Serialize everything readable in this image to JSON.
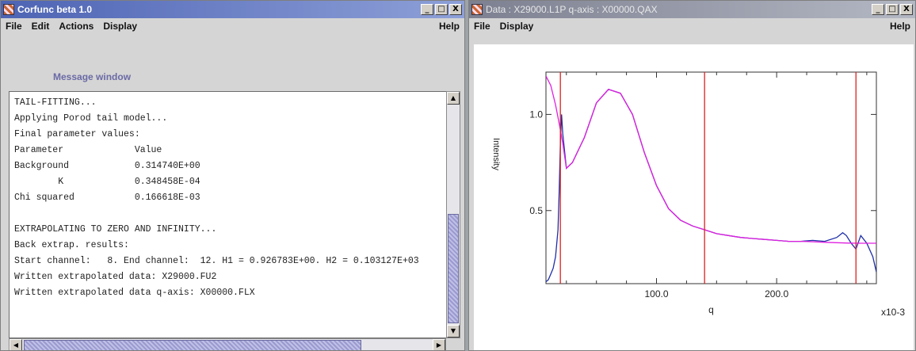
{
  "corfunc_window": {
    "title": "Corfunc beta 1.0",
    "controls": {
      "minimize": "_",
      "maximize": "□",
      "close": "X"
    },
    "menu": [
      "File",
      "Edit",
      "Actions",
      "Display"
    ],
    "help": "Help",
    "message_label": "Message window",
    "log_lines": [
      "TAIL-FITTING...",
      "Applying Porod tail model...",
      "Final parameter values:",
      "Parameter             Value",
      "Background            0.314740E+00",
      "        K             0.348458E-04",
      "Chi squared           0.166618E-03",
      "",
      "EXTRAPOLATING TO ZERO AND INFINITY...",
      "Back extrap. results:",
      "Start channel:   8. End channel:  12. H1 = 0.926783E+00. H2 = 0.103127E+03",
      "Written extrapolated data: X29000.FU2",
      "Written extrapolated data q-axis: X00000.FLX"
    ]
  },
  "data_window": {
    "title": "Data : X29000.L1P  q-axis : X00000.QAX",
    "controls": {
      "minimize": "_",
      "maximize": "□",
      "close": "X"
    },
    "menu": [
      "File",
      "Display"
    ],
    "help": "Help"
  },
  "chart_data": {
    "type": "line",
    "xlabel": "q",
    "ylabel": "Intensity",
    "x_multiplier_label": "x10-3",
    "xlim": [
      8,
      283
    ],
    "ylim": [
      0.12,
      1.22
    ],
    "x_ticks": [
      100.0,
      200.0
    ],
    "x_tick_labels": [
      "100.0",
      "200.0"
    ],
    "y_ticks": [
      0.5,
      1.0
    ],
    "y_tick_labels": [
      "0.5",
      "1.0"
    ],
    "grid": false,
    "vertical_markers_x": [
      20,
      140,
      266
    ],
    "series": [
      {
        "color": "#1f2fa8",
        "x": [
          8,
          10,
          12,
          14,
          16,
          18,
          19,
          20,
          21,
          22,
          25,
          30,
          40,
          50,
          60,
          70,
          80,
          90,
          100,
          110,
          120,
          130,
          140,
          150,
          160,
          170,
          180,
          190,
          200,
          210,
          220,
          230,
          240,
          250,
          255,
          258,
          262,
          266,
          270,
          275,
          280,
          283
        ],
        "y": [
          0.13,
          0.14,
          0.17,
          0.2,
          0.26,
          0.4,
          0.6,
          0.85,
          1.0,
          0.9,
          0.72,
          0.75,
          0.88,
          1.06,
          1.13,
          1.11,
          1.0,
          0.8,
          0.63,
          0.51,
          0.45,
          0.42,
          0.4,
          0.38,
          0.37,
          0.36,
          0.355,
          0.35,
          0.345,
          0.34,
          0.34,
          0.345,
          0.34,
          0.36,
          0.385,
          0.37,
          0.33,
          0.3,
          0.37,
          0.33,
          0.26,
          0.18
        ]
      },
      {
        "color": "#e020e0",
        "x": [
          8,
          12,
          16,
          20,
          22,
          25,
          30,
          40,
          50,
          60,
          70,
          80,
          90,
          100,
          110,
          120,
          130,
          140,
          150,
          160,
          170,
          180,
          190,
          200,
          210,
          220,
          230,
          240,
          250,
          260,
          270,
          283
        ],
        "y": [
          1.2,
          1.15,
          1.05,
          0.92,
          0.85,
          0.72,
          0.75,
          0.88,
          1.06,
          1.13,
          1.11,
          1.0,
          0.8,
          0.63,
          0.51,
          0.45,
          0.42,
          0.4,
          0.38,
          0.37,
          0.36,
          0.355,
          0.35,
          0.345,
          0.34,
          0.34,
          0.338,
          0.335,
          0.333,
          0.331,
          0.33,
          0.33
        ]
      }
    ]
  }
}
